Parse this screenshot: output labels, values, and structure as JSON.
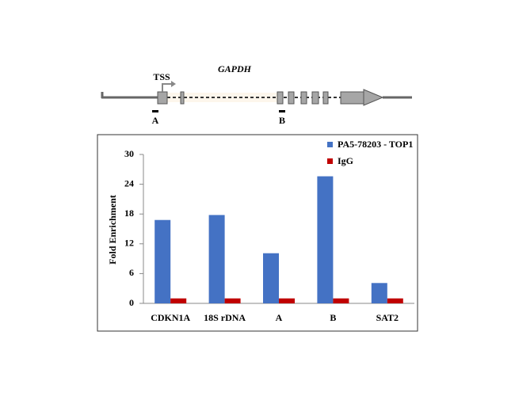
{
  "gene_diagram": {
    "gene": "GAPDH",
    "tss": "TSS",
    "regions": [
      "A",
      "B"
    ]
  },
  "chart_data": {
    "type": "bar",
    "y_label": "Fold Enrichment",
    "categories": [
      "CDKN1A",
      "18S rDNA",
      "A",
      "B",
      "SAT2"
    ],
    "series": [
      {
        "name": "PA5-78203 - TOP1",
        "color": "#4472c4",
        "values": [
          16.8,
          17.8,
          10.1,
          25.6,
          4.1
        ]
      },
      {
        "name": "IgG",
        "color": "#c00000",
        "values": [
          1,
          1,
          1,
          1,
          1
        ]
      }
    ],
    "ylim": [
      0,
      30
    ],
    "yticks": [
      0,
      6,
      12,
      18,
      24,
      30
    ],
    "grid": false,
    "legend": "top-right"
  }
}
